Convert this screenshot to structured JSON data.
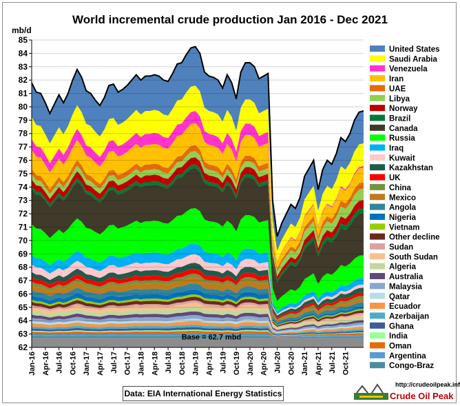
{
  "chart_data": {
    "type": "area",
    "title": "World incremental crude production Jan 2016 - Dec 2021",
    "ylabel": "mb/d",
    "ylim": [
      62,
      85
    ],
    "yticks": [
      62,
      63,
      64,
      65,
      66,
      67,
      68,
      69,
      70,
      71,
      72,
      73,
      74,
      75,
      76,
      77,
      78,
      79,
      80,
      81,
      82,
      83,
      84,
      85
    ],
    "base_value": 62.7,
    "base_label": "Base = 62.7 mbd",
    "x_tick_labels": [
      "Jan-16",
      "Apr-16",
      "Jul-16",
      "Oct-16",
      "Jan-17",
      "Apr-17",
      "Jul-17",
      "Oct-17",
      "Jan-18",
      "Apr-18",
      "Jul-18",
      "Oct-18",
      "Jan-19",
      "Apr-19",
      "Jul-19",
      "Oct-19",
      "Jan-20",
      "Apr-20",
      "Jul-20",
      "Oct-20",
      "Jan-21",
      "Apr-21",
      "Jul-21",
      "Oct-21"
    ],
    "legend_position": "right",
    "total": [
      81.8,
      81.1,
      81.0,
      80.3,
      79.5,
      80.2,
      80.9,
      80.3,
      81.0,
      82.0,
      82.8,
      82.2,
      81.2,
      81.0,
      80.5,
      80.1,
      80.7,
      81.6,
      81.7,
      81.1,
      81.3,
      81.6,
      82.0,
      82.4,
      82.0,
      82.3,
      82.3,
      82.4,
      82.3,
      82.0,
      81.9,
      82.5,
      83.2,
      83.3,
      83.9,
      84.4,
      84.5,
      84.0,
      82.6,
      82.3,
      82.2,
      82.0,
      81.4,
      82.4,
      81.8,
      80.6,
      82.6,
      83.3,
      83.3,
      83.0,
      82.1,
      82.3,
      82.5,
      73.0,
      70.3,
      71.3,
      72.0,
      72.7,
      72.4,
      73.2,
      74.8,
      75.4,
      76.0,
      73.8,
      75.3,
      76.0,
      75.7,
      76.5,
      77.7,
      77.4,
      78.0,
      79.0,
      79.6,
      79.7
    ],
    "series": [
      {
        "name": "United States",
        "color": "#4f81bd"
      },
      {
        "name": "Saudi Arabia",
        "color": "#ffff00"
      },
      {
        "name": "Venezuela",
        "color": "#ff33cc"
      },
      {
        "name": "Iran",
        "color": "#ffc000"
      },
      {
        "name": "UAE",
        "color": "#e36c09"
      },
      {
        "name": "Libya",
        "color": "#92d050"
      },
      {
        "name": "Norway",
        "color": "#c00000"
      },
      {
        "name": "Brazil",
        "color": "#007a33"
      },
      {
        "name": "Canada",
        "color": "#403a2a"
      },
      {
        "name": "Russia",
        "color": "#00ff00"
      },
      {
        "name": "Iraq",
        "color": "#00b0f0"
      },
      {
        "name": "Kuwait",
        "color": "#ffc7ce"
      },
      {
        "name": "Kazakhstan",
        "color": "#1f5c4a"
      },
      {
        "name": "UK",
        "color": "#ff0000"
      },
      {
        "name": "China",
        "color": "#76923c"
      },
      {
        "name": "Mexico",
        "color": "#c07a1a"
      },
      {
        "name": "Angola",
        "color": "#31859c"
      },
      {
        "name": "Nigeria",
        "color": "#0070c0"
      },
      {
        "name": "Vietnam",
        "color": "#99cc00"
      },
      {
        "name": "Other decline",
        "color": "#6b2a1a"
      },
      {
        "name": "Sudan",
        "color": "#d9a3a3"
      },
      {
        "name": "South Sudan",
        "color": "#fabf8f"
      },
      {
        "name": "Algeria",
        "color": "#c4d79b"
      },
      {
        "name": "Australia",
        "color": "#5f497a"
      },
      {
        "name": "Malaysia",
        "color": "#8aa6d1"
      },
      {
        "name": "Qatar",
        "color": "#b7dee8"
      },
      {
        "name": "Ecuador",
        "color": "#f79646"
      },
      {
        "name": "Azerbaijan",
        "color": "#4bacc6"
      },
      {
        "name": "Ghana",
        "color": "#3e5a9a"
      },
      {
        "name": "India",
        "color": "#99ff99"
      },
      {
        "name": "Oman",
        "color": "#e46c0a"
      },
      {
        "name": "Argentina",
        "color": "#5b9bd5"
      },
      {
        "name": "Congo-Braz",
        "color": "#4b8d9c"
      }
    ],
    "share_pre": [
      16.0,
      10.5,
      5.0,
      9.0,
      2.5,
      2.5,
      3.0,
      1.5,
      16.5,
      14.5,
      4.5,
      3.5,
      2.5,
      2.0,
      1.5,
      2.5,
      2.5,
      2.0,
      1.0,
      1.5,
      1.0,
      1.5,
      2.0,
      1.5,
      1.5,
      1.0,
      1.5,
      1.0,
      1.0,
      0.5,
      1.0,
      1.0,
      1.0
    ],
    "share_post": [
      20.0,
      14.0,
      1.0,
      9.0,
      4.0,
      7.0,
      5.0,
      3.0,
      26.0,
      14.0,
      4.0,
      2.0,
      3.0,
      2.0,
      2.0,
      2.0,
      2.5,
      1.5,
      1.0,
      1.5,
      1.0,
      1.5,
      2.0,
      1.5,
      1.5,
      1.0,
      1.5,
      1.0,
      1.0,
      0.5,
      1.0,
      1.0,
      1.0
    ]
  },
  "source_label": "Data:  EIA International Energy Statistics",
  "site_url": "http://crudeoilpeak.info",
  "logo_text": "Crude Oil Peak"
}
